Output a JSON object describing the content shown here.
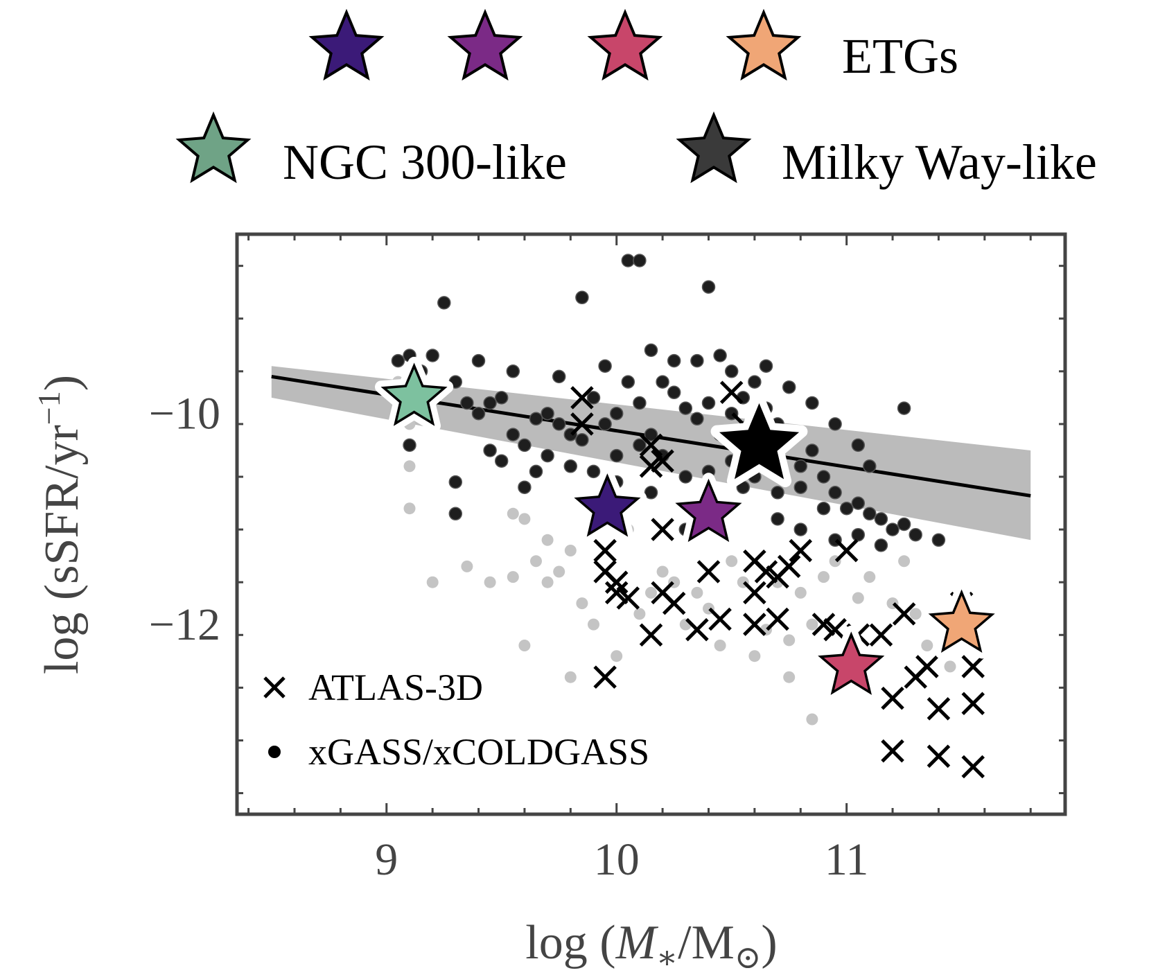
{
  "chart_data": {
    "type": "scatter",
    "xlabel": "log (M*/M⊙)",
    "ylabel": "log (sSFR/yr⁻¹)",
    "xlim": [
      8.35,
      11.95
    ],
    "ylim": [
      -13.8,
      -8.3
    ],
    "x_ticks": [
      {
        "value": 9,
        "label": "9"
      },
      {
        "value": 10,
        "label": "10"
      },
      {
        "value": 11,
        "label": "11"
      }
    ],
    "y_ticks": [
      {
        "value": -10,
        "label": "−10"
      },
      {
        "value": -12,
        "label": "−12"
      }
    ],
    "grid": false,
    "legend_top": [
      {
        "label": "",
        "marker": "star",
        "color": "#3b1a78"
      },
      {
        "label": "",
        "marker": "star",
        "color": "#7b2a86"
      },
      {
        "label": "",
        "marker": "star",
        "color": "#c8466a"
      },
      {
        "label": "ETGs",
        "marker": "star",
        "color": "#f0a676"
      },
      {
        "label": "NGC 300-like",
        "marker": "star",
        "color": "#6fa386"
      },
      {
        "label": "Milky Way-like",
        "marker": "star",
        "color": "#3a3a3a"
      }
    ],
    "legend_inner": [
      {
        "label": "ATLAS-3D",
        "marker": "x"
      },
      {
        "label": "xGASS/xCOLDGASS",
        "marker": "dot"
      }
    ],
    "main_sequence": {
      "x": [
        8.5,
        11.8
      ],
      "y": [
        -9.65,
        -10.78
      ],
      "band_upper": [
        [
          8.5,
          -9.55
        ],
        [
          11.8,
          -10.35
        ]
      ],
      "band_lower": [
        [
          8.5,
          -9.85
        ],
        [
          11.8,
          -11.2
        ]
      ],
      "color": "#bbbbbb"
    },
    "special_galaxies": [
      {
        "name": "NGC 300-like",
        "x": 9.12,
        "y": -9.85,
        "color": "#7dc19f"
      },
      {
        "name": "Milky Way-like",
        "x": 10.62,
        "y": -10.3,
        "color": "#000000"
      },
      {
        "name": "ETG 1",
        "x": 9.96,
        "y": -10.9,
        "color": "#3b1a78"
      },
      {
        "name": "ETG 2",
        "x": 10.4,
        "y": -10.95,
        "color": "#7b2a86"
      },
      {
        "name": "ETG 3",
        "x": 11.02,
        "y": -12.4,
        "color": "#c8466a"
      },
      {
        "name": "ETG 4",
        "x": 11.5,
        "y": -12.0,
        "color": "#f0a676"
      }
    ],
    "atlas3d": [
      [
        9.85,
        -9.85
      ],
      [
        9.85,
        -10.1
      ],
      [
        9.95,
        -11.0
      ],
      [
        9.95,
        -11.3
      ],
      [
        9.95,
        -11.5
      ],
      [
        10.0,
        -11.6
      ],
      [
        10.0,
        -11.7
      ],
      [
        10.05,
        -11.75
      ],
      [
        9.95,
        -12.5
      ],
      [
        10.15,
        -10.3
      ],
      [
        10.2,
        -10.45
      ],
      [
        10.15,
        -10.5
      ],
      [
        10.2,
        -11.1
      ],
      [
        10.2,
        -11.7
      ],
      [
        10.25,
        -11.8
      ],
      [
        10.15,
        -12.1
      ],
      [
        10.35,
        -12.05
      ],
      [
        10.45,
        -11.95
      ],
      [
        10.4,
        -11.5
      ],
      [
        10.5,
        -9.8
      ],
      [
        10.55,
        -10.1
      ],
      [
        10.6,
        -11.4
      ],
      [
        10.65,
        -11.5
      ],
      [
        10.7,
        -11.55
      ],
      [
        10.75,
        -11.45
      ],
      [
        10.8,
        -11.3
      ],
      [
        10.6,
        -11.7
      ],
      [
        10.6,
        -12.0
      ],
      [
        10.7,
        -11.95
      ],
      [
        10.9,
        -12.0
      ],
      [
        10.95,
        -12.05
      ],
      [
        11.0,
        -11.3
      ],
      [
        11.15,
        -12.1
      ],
      [
        11.25,
        -11.9
      ],
      [
        11.2,
        -12.7
      ],
      [
        11.3,
        -12.5
      ],
      [
        11.35,
        -12.4
      ],
      [
        11.4,
        -12.8
      ],
      [
        11.55,
        -12.4
      ],
      [
        11.55,
        -12.75
      ],
      [
        11.2,
        -13.2
      ],
      [
        11.4,
        -13.25
      ],
      [
        11.55,
        -13.35
      ],
      [
        11.5,
        -11.8
      ],
      [
        11.05,
        -12.1
      ]
    ],
    "xgass_sf": [
      [
        9.05,
        -9.5
      ],
      [
        9.1,
        -9.45
      ],
      [
        9.15,
        -9.6
      ],
      [
        9.2,
        -9.45
      ],
      [
        9.25,
        -8.95
      ],
      [
        9.3,
        -9.7
      ],
      [
        9.35,
        -9.9
      ],
      [
        9.4,
        -10.0
      ],
      [
        9.45,
        -9.9
      ],
      [
        9.5,
        -9.85
      ],
      [
        9.55,
        -10.2
      ],
      [
        9.6,
        -10.3
      ],
      [
        9.65,
        -10.05
      ],
      [
        9.7,
        -10.0
      ],
      [
        9.75,
        -10.1
      ],
      [
        9.8,
        -10.2
      ],
      [
        9.85,
        -10.25
      ],
      [
        9.9,
        -9.85
      ],
      [
        9.95,
        -10.1
      ],
      [
        10.0,
        -10.0
      ],
      [
        10.05,
        -9.7
      ],
      [
        10.1,
        -9.9
      ],
      [
        10.15,
        -10.2
      ],
      [
        10.2,
        -9.7
      ],
      [
        10.25,
        -9.8
      ],
      [
        10.3,
        -9.95
      ],
      [
        10.35,
        -10.05
      ],
      [
        10.4,
        -9.9
      ],
      [
        10.45,
        -10.2
      ],
      [
        10.5,
        -10.0
      ],
      [
        10.55,
        -9.85
      ],
      [
        10.6,
        -9.7
      ],
      [
        10.65,
        -9.95
      ],
      [
        10.7,
        -10.1
      ],
      [
        10.75,
        -10.2
      ],
      [
        10.8,
        -10.5
      ],
      [
        10.85,
        -10.35
      ],
      [
        10.9,
        -10.6
      ],
      [
        10.95,
        -10.75
      ],
      [
        11.0,
        -10.9
      ],
      [
        11.05,
        -10.85
      ],
      [
        11.1,
        -10.95
      ],
      [
        11.15,
        -11.0
      ],
      [
        11.2,
        -11.1
      ],
      [
        11.25,
        -11.05
      ],
      [
        11.3,
        -11.15
      ],
      [
        11.4,
        -11.2
      ],
      [
        11.25,
        -9.95
      ],
      [
        10.05,
        -8.55
      ],
      [
        10.1,
        -8.55
      ],
      [
        10.4,
        -8.8
      ],
      [
        9.85,
        -8.9
      ],
      [
        9.1,
        -10.3
      ],
      [
        9.3,
        -10.65
      ],
      [
        9.3,
        -10.95
      ],
      [
        9.5,
        -10.45
      ],
      [
        9.6,
        -10.7
      ],
      [
        9.7,
        -10.4
      ],
      [
        9.8,
        -10.5
      ],
      [
        9.9,
        -10.55
      ],
      [
        10.0,
        -10.4
      ],
      [
        10.1,
        -10.3
      ],
      [
        10.2,
        -10.4
      ],
      [
        10.3,
        -10.6
      ],
      [
        10.4,
        -10.55
      ],
      [
        10.5,
        -10.45
      ],
      [
        10.6,
        -10.6
      ],
      [
        10.7,
        -10.75
      ],
      [
        10.8,
        -10.7
      ],
      [
        10.9,
        -10.9
      ],
      [
        10.35,
        -9.5
      ],
      [
        10.45,
        -9.45
      ],
      [
        10.5,
        -9.6
      ],
      [
        10.25,
        -9.5
      ],
      [
        10.15,
        -9.4
      ],
      [
        9.95,
        -9.55
      ],
      [
        9.75,
        -9.65
      ],
      [
        9.55,
        -9.6
      ],
      [
        9.4,
        -9.5
      ],
      [
        9.45,
        -10.35
      ],
      [
        9.65,
        -10.55
      ],
      [
        10.0,
        -10.65
      ],
      [
        10.15,
        -10.75
      ],
      [
        10.3,
        -11.1
      ],
      [
        10.55,
        -10.7
      ],
      [
        10.7,
        -11.0
      ],
      [
        10.8,
        -11.1
      ],
      [
        10.95,
        -11.2
      ],
      [
        11.05,
        -11.15
      ],
      [
        11.15,
        -11.25
      ],
      [
        10.65,
        -9.55
      ],
      [
        10.75,
        -9.75
      ],
      [
        10.85,
        -9.9
      ],
      [
        10.95,
        -10.1
      ],
      [
        11.05,
        -10.3
      ],
      [
        11.1,
        -10.5
      ]
    ],
    "xgass_passive": [
      [
        9.05,
        -9.7
      ],
      [
        9.1,
        -10.1
      ],
      [
        9.1,
        -10.9
      ],
      [
        9.2,
        -11.6
      ],
      [
        9.35,
        -11.45
      ],
      [
        9.45,
        -11.6
      ],
      [
        9.55,
        -11.55
      ],
      [
        9.6,
        -12.2
      ],
      [
        9.55,
        -10.95
      ],
      [
        9.6,
        -11.0
      ],
      [
        9.65,
        -11.4
      ],
      [
        9.7,
        -11.6
      ],
      [
        9.75,
        -11.5
      ],
      [
        9.8,
        -11.3
      ],
      [
        9.85,
        -11.8
      ],
      [
        9.9,
        -12.0
      ],
      [
        10.0,
        -12.3
      ],
      [
        10.1,
        -11.9
      ],
      [
        10.15,
        -11.7
      ],
      [
        10.2,
        -11.5
      ],
      [
        10.25,
        -11.6
      ],
      [
        10.3,
        -12.0
      ],
      [
        10.35,
        -11.7
      ],
      [
        10.4,
        -11.85
      ],
      [
        10.45,
        -12.2
      ],
      [
        10.5,
        -11.4
      ],
      [
        10.55,
        -11.6
      ],
      [
        10.6,
        -12.3
      ],
      [
        10.65,
        -12.05
      ],
      [
        10.7,
        -11.6
      ],
      [
        10.75,
        -12.15
      ],
      [
        10.8,
        -11.7
      ],
      [
        10.85,
        -12.0
      ],
      [
        10.9,
        -11.55
      ],
      [
        10.95,
        -11.4
      ],
      [
        11.05,
        -11.75
      ],
      [
        11.1,
        -11.55
      ],
      [
        11.2,
        -11.8
      ],
      [
        11.25,
        -11.4
      ],
      [
        11.3,
        -11.9
      ],
      [
        11.35,
        -12.2
      ],
      [
        11.45,
        -12.4
      ],
      [
        10.75,
        -12.5
      ],
      [
        10.85,
        -12.9
      ],
      [
        9.8,
        -12.5
      ],
      [
        9.1,
        -10.5
      ],
      [
        9.7,
        -11.2
      ],
      [
        10.05,
        -11.1
      ]
    ]
  }
}
